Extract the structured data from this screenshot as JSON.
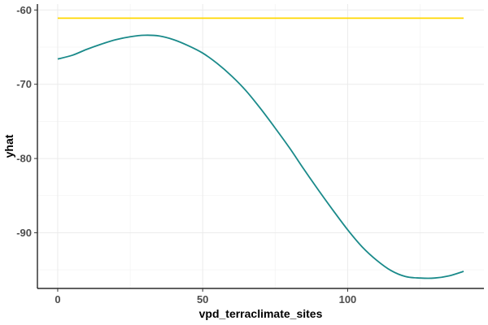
{
  "chart_data": {
    "type": "line",
    "title": "",
    "xlabel": "vpd_terraclimate_sites",
    "ylabel": "yhat",
    "xlim": [
      -7,
      147
    ],
    "ylim": [
      -97.5,
      -59.2
    ],
    "x_ticks": [
      0,
      50,
      100
    ],
    "y_ticks": [
      -90,
      -80,
      -70,
      -60
    ],
    "grid": true,
    "legend": "none",
    "series": [
      {
        "color": "#1a8a8a",
        "x": [
          0,
          5,
          10,
          15,
          20,
          25,
          30,
          35,
          40,
          45,
          50,
          55,
          60,
          65,
          70,
          75,
          80,
          85,
          90,
          95,
          100,
          105,
          110,
          115,
          120,
          125,
          130,
          135,
          140
        ],
        "y": [
          -66.6,
          -66.1,
          -65.3,
          -64.6,
          -64.0,
          -63.6,
          -63.4,
          -63.5,
          -64.0,
          -64.8,
          -65.8,
          -67.2,
          -68.9,
          -70.9,
          -73.3,
          -75.9,
          -78.6,
          -81.5,
          -84.3,
          -87.0,
          -89.6,
          -91.9,
          -93.7,
          -95.1,
          -95.9,
          -96.1,
          -96.1,
          -95.8,
          -95.2
        ]
      },
      {
        "color": "#ffd700",
        "x": [
          0,
          140
        ],
        "y": [
          -61.1,
          -61.1
        ]
      }
    ]
  }
}
